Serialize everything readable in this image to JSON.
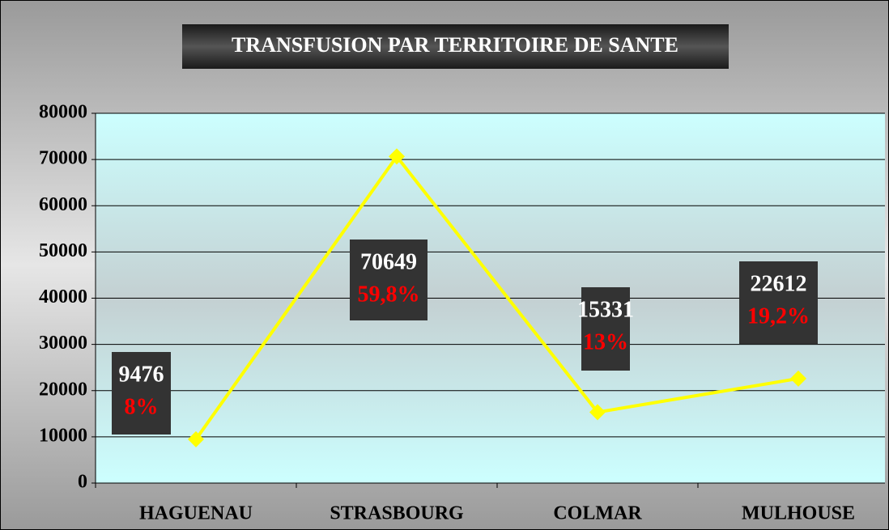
{
  "chart_data": {
    "type": "line",
    "title": "TRANSFUSION PAR TERRITOIRE DE SANTE",
    "categories": [
      "HAGUENAU",
      "STRASBOURG",
      "COLMAR",
      "MULHOUSE"
    ],
    "values": [
      9476,
      70649,
      15331,
      22612
    ],
    "annotations": [
      "8%",
      "59,8%",
      "13%",
      "19,2%"
    ],
    "color": "#ffff00",
    "ylim": [
      0,
      80000
    ],
    "yticks": [
      0,
      10000,
      20000,
      30000,
      40000,
      50000,
      60000,
      70000,
      80000
    ],
    "grid": true
  }
}
